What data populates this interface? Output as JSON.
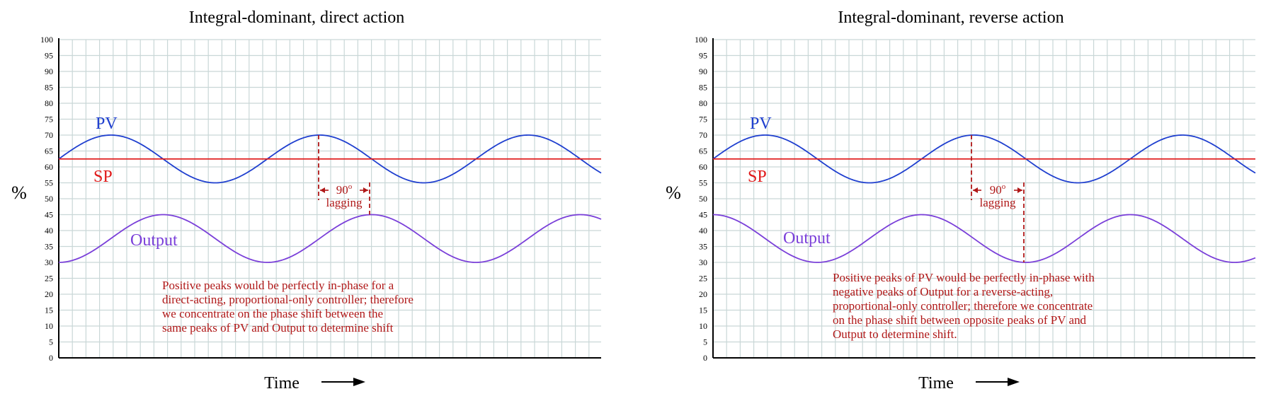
{
  "chart_data": [
    {
      "type": "line",
      "title": "Integral-dominant, direct action",
      "xlabel": "Time",
      "ylabel": "%",
      "ylim": [
        0,
        100
      ],
      "yticks": [
        0,
        5,
        10,
        15,
        20,
        25,
        30,
        35,
        40,
        45,
        50,
        55,
        60,
        65,
        70,
        75,
        80,
        85,
        90,
        95,
        100
      ],
      "grid": true,
      "series": [
        {
          "name": "PV",
          "color": "#1f3fcf",
          "center": 62.5,
          "amplitude": 7.5,
          "cycles": 2.6,
          "phase_deg": 0
        },
        {
          "name": "SP",
          "color": "#e01a1a",
          "constant": 62.5
        },
        {
          "name": "Output",
          "color": "#7a3fd9",
          "center": 37.5,
          "amplitude": 7.5,
          "cycles": 2.6,
          "phase_deg": -90
        }
      ],
      "shift_label": [
        "90",
        "lagging"
      ],
      "shift_degree_mark": "o",
      "annotation": [
        "Positive peaks would be perfectly in-phase for a",
        "direct-acting, proportional-only controller; therefore",
        "we concentrate on the phase shift between the",
        "same peaks of PV and Output to determine shift"
      ]
    },
    {
      "type": "line",
      "title": "Integral-dominant, reverse action",
      "xlabel": "Time",
      "ylabel": "%",
      "ylim": [
        0,
        100
      ],
      "yticks": [
        0,
        5,
        10,
        15,
        20,
        25,
        30,
        35,
        40,
        45,
        50,
        55,
        60,
        65,
        70,
        75,
        80,
        85,
        90,
        95,
        100
      ],
      "grid": true,
      "series": [
        {
          "name": "PV",
          "color": "#1f3fcf",
          "center": 62.5,
          "amplitude": 7.5,
          "cycles": 2.6,
          "phase_deg": 0
        },
        {
          "name": "SP",
          "color": "#e01a1a",
          "constant": 62.5
        },
        {
          "name": "Output",
          "color": "#7a3fd9",
          "center": 37.5,
          "amplitude": 7.5,
          "cycles": 2.6,
          "phase_deg": 90
        }
      ],
      "shift_label": [
        "90",
        "lagging"
      ],
      "shift_degree_mark": "o",
      "annotation": [
        "Positive peaks of PV would be perfectly in-phase with",
        "negative peaks of Output for a reverse-acting,",
        "proportional-only controller; therefore we concentrate",
        "on the phase shift between opposite peaks of PV and",
        "Output to determine shift."
      ]
    }
  ]
}
